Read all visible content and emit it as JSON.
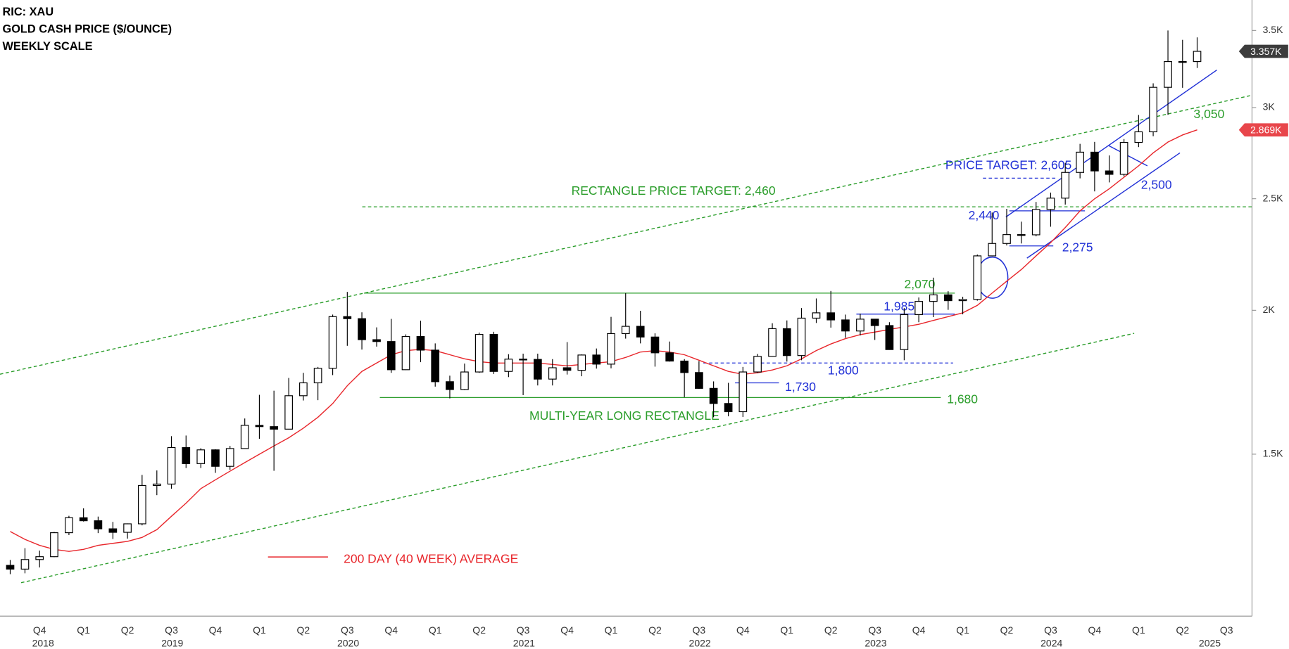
{
  "chart_data": {
    "type": "candlestick",
    "title_lines": [
      "RIC: XAU",
      "GOLD CASH PRICE ($/OUNCE)",
      "WEEKLY SCALE"
    ],
    "xlim": [
      2018.65,
      2025.77
    ],
    "ylim": [
      1085,
      3720
    ],
    "log_scale": true,
    "grid": false,
    "xticks": [
      {
        "value": 2018.875,
        "label": "Q4"
      },
      {
        "value": 2019.125,
        "label": "Q1"
      },
      {
        "value": 2019.375,
        "label": "Q2"
      },
      {
        "value": 2019.625,
        "label": "Q3"
      },
      {
        "value": 2019.875,
        "label": "Q4"
      },
      {
        "value": 2020.125,
        "label": "Q1"
      },
      {
        "value": 2020.375,
        "label": "Q2"
      },
      {
        "value": 2020.625,
        "label": "Q3"
      },
      {
        "value": 2020.875,
        "label": "Q4"
      },
      {
        "value": 2021.125,
        "label": "Q1"
      },
      {
        "value": 2021.375,
        "label": "Q2"
      },
      {
        "value": 2021.625,
        "label": "Q3"
      },
      {
        "value": 2021.875,
        "label": "Q4"
      },
      {
        "value": 2022.125,
        "label": "Q1"
      },
      {
        "value": 2022.375,
        "label": "Q2"
      },
      {
        "value": 2022.625,
        "label": "Q3"
      },
      {
        "value": 2022.875,
        "label": "Q4"
      },
      {
        "value": 2023.125,
        "label": "Q1"
      },
      {
        "value": 2023.375,
        "label": "Q2"
      },
      {
        "value": 2023.625,
        "label": "Q3"
      },
      {
        "value": 2023.875,
        "label": "Q4"
      },
      {
        "value": 2024.125,
        "label": "Q1"
      },
      {
        "value": 2024.375,
        "label": "Q2"
      },
      {
        "value": 2024.625,
        "label": "Q3"
      },
      {
        "value": 2024.875,
        "label": "Q4"
      },
      {
        "value": 2025.125,
        "label": "Q1"
      },
      {
        "value": 2025.375,
        "label": "Q2"
      },
      {
        "value": 2025.625,
        "label": "Q3"
      }
    ],
    "x_year_labels": [
      {
        "value": 2018.895,
        "label": "2018"
      },
      {
        "value": 2019.63,
        "label": "2019"
      },
      {
        "value": 2020.63,
        "label": "2020"
      },
      {
        "value": 2021.63,
        "label": "2021"
      },
      {
        "value": 2022.63,
        "label": "2022"
      },
      {
        "value": 2023.63,
        "label": "2023"
      },
      {
        "value": 2024.63,
        "label": "2024"
      },
      {
        "value": 2025.53,
        "label": "2025"
      }
    ],
    "yticks": [
      {
        "value": 1500,
        "label": "1.5K"
      },
      {
        "value": 2000,
        "label": "2K"
      },
      {
        "value": 2500,
        "label": "2.5K"
      },
      {
        "value": 3000,
        "label": "3K"
      },
      {
        "value": 3500,
        "label": "3.5K"
      }
    ],
    "x": [
      2018.708,
      2018.792,
      2018.875,
      2018.958,
      2019.042,
      2019.125,
      2019.208,
      2019.292,
      2019.375,
      2019.458,
      2019.542,
      2019.625,
      2019.708,
      2019.792,
      2019.875,
      2019.958,
      2020.042,
      2020.125,
      2020.208,
      2020.292,
      2020.375,
      2020.458,
      2020.542,
      2020.625,
      2020.708,
      2020.792,
      2020.875,
      2020.958,
      2021.042,
      2021.125,
      2021.208,
      2021.292,
      2021.375,
      2021.458,
      2021.542,
      2021.625,
      2021.708,
      2021.792,
      2021.875,
      2021.958,
      2022.042,
      2022.125,
      2022.208,
      2022.292,
      2022.375,
      2022.458,
      2022.542,
      2022.625,
      2022.708,
      2022.792,
      2022.875,
      2022.958,
      2023.042,
      2023.125,
      2023.208,
      2023.292,
      2023.375,
      2023.458,
      2023.542,
      2023.625,
      2023.708,
      2023.792,
      2023.875,
      2023.958,
      2024.042,
      2024.125,
      2024.208,
      2024.292,
      2024.375,
      2024.458,
      2024.542,
      2024.625,
      2024.708,
      2024.792,
      2024.875,
      2024.958,
      2025.042,
      2025.125,
      2025.208,
      2025.292,
      2025.375,
      2025.458
    ],
    "open": [
      1201,
      1192,
      1215,
      1222,
      1282,
      1321,
      1313,
      1292,
      1283,
      1305,
      1409,
      1413,
      1520,
      1472,
      1513,
      1464,
      1517,
      1589,
      1585,
      1577,
      1686,
      1730,
      1781,
      1975,
      1967,
      1886,
      1879,
      1776,
      1898,
      1847,
      1734,
      1707,
      1768,
      1906,
      1770,
      1814,
      1813,
      1743,
      1783,
      1774,
      1829,
      1796,
      1909,
      1937,
      1896,
      1837,
      1807,
      1766,
      1711,
      1660,
      1633,
      1768,
      1824,
      1928,
      1827,
      1969,
      1990,
      1962,
      1919,
      1965,
      1940,
      1849,
      1983,
      2036,
      2063,
      2039,
      2044,
      2230,
      2286,
      2327,
      2326,
      2447,
      2503,
      2635,
      2744,
      2643,
      2625,
      2798,
      2858,
      3124,
      3289,
      3289
    ],
    "high": [
      1214,
      1243,
      1237,
      1284,
      1326,
      1346,
      1324,
      1310,
      1306,
      1439,
      1452,
      1555,
      1557,
      1518,
      1515,
      1525,
      1611,
      1689,
      1703,
      1747,
      1765,
      1786,
      1983,
      2075,
      1992,
      1933,
      1966,
      1906,
      1959,
      1872,
      1755,
      1798,
      1913,
      1916,
      1832,
      1834,
      1834,
      1814,
      1877,
      1831,
      1853,
      1974,
      2070,
      1998,
      1910,
      1879,
      1814,
      1807,
      1735,
      1730,
      1786,
      1833,
      1949,
      1960,
      2009,
      2048,
      2079,
      1983,
      1987,
      1966,
      1953,
      2009,
      2052,
      2135,
      2078,
      2055,
      2236,
      2432,
      2450,
      2388,
      2484,
      2531,
      2686,
      2790,
      2801,
      2726,
      2817,
      2956,
      3149,
      3500,
      3435,
      3452
    ],
    "low": [
      1180,
      1182,
      1196,
      1221,
      1276,
      1311,
      1281,
      1266,
      1267,
      1301,
      1382,
      1400,
      1459,
      1459,
      1445,
      1454,
      1517,
      1547,
      1451,
      1576,
      1670,
      1671,
      1757,
      1863,
      1849,
      1860,
      1765,
      1775,
      1803,
      1717,
      1677,
      1705,
      1765,
      1761,
      1750,
      1688,
      1721,
      1721,
      1759,
      1753,
      1780,
      1781,
      1890,
      1872,
      1787,
      1805,
      1681,
      1709,
      1615,
      1618,
      1616,
      1765,
      1823,
      1805,
      1810,
      1950,
      1932,
      1893,
      1902,
      1885,
      1848,
      1810,
      1953,
      1973,
      2002,
      1984,
      2039,
      2228,
      2277,
      2286,
      2319,
      2364,
      2471,
      2604,
      2537,
      2583,
      2615,
      2772,
      2833,
      2957,
      3121,
      3247
    ],
    "close": [
      1192,
      1215,
      1222,
      1282,
      1321,
      1313,
      1292,
      1283,
      1305,
      1409,
      1413,
      1520,
      1472,
      1513,
      1464,
      1517,
      1589,
      1585,
      1577,
      1686,
      1730,
      1781,
      1975,
      1967,
      1886,
      1879,
      1776,
      1898,
      1847,
      1734,
      1707,
      1768,
      1906,
      1770,
      1814,
      1813,
      1743,
      1783,
      1774,
      1829,
      1796,
      1909,
      1937,
      1896,
      1837,
      1807,
      1766,
      1711,
      1660,
      1633,
      1768,
      1824,
      1928,
      1827,
      1969,
      1990,
      1962,
      1919,
      1965,
      1940,
      1849,
      1983,
      2036,
      2063,
      2039,
      2044,
      2230,
      2286,
      2327,
      2326,
      2447,
      2503,
      2635,
      2744,
      2643,
      2625,
      2798,
      2858,
      3124,
      3289,
      3289,
      3357
    ],
    "moving_average": {
      "name": "200 DAY (40 WEEK) AVERAGE",
      "color": "#e8262b",
      "values": [
        1285,
        1265,
        1250,
        1240,
        1235,
        1240,
        1250,
        1255,
        1260,
        1270,
        1290,
        1325,
        1360,
        1400,
        1425,
        1450,
        1475,
        1500,
        1525,
        1550,
        1580,
        1615,
        1660,
        1720,
        1770,
        1800,
        1830,
        1845,
        1850,
        1845,
        1830,
        1815,
        1805,
        1800,
        1800,
        1800,
        1800,
        1795,
        1790,
        1795,
        1800,
        1805,
        1820,
        1840,
        1845,
        1840,
        1830,
        1810,
        1790,
        1770,
        1760,
        1765,
        1775,
        1790,
        1815,
        1845,
        1870,
        1890,
        1905,
        1915,
        1925,
        1935,
        1945,
        1960,
        1975,
        1990,
        2020,
        2070,
        2120,
        2170,
        2230,
        2290,
        2360,
        2440,
        2500,
        2550,
        2610,
        2670,
        2740,
        2800,
        2840,
        2869
      ]
    },
    "price_tags": [
      {
        "value": 3357,
        "label": "3.357K",
        "color": "#3c3c3c"
      },
      {
        "value": 2869,
        "label": "2.869K",
        "color": "#e8464b"
      }
    ],
    "levels": [
      {
        "value": 2070,
        "label": "2,070",
        "x": [
          2020.72,
          2024.08
        ],
        "color": "#2a9d2a",
        "dashed": false
      },
      {
        "value": 1680,
        "label": "1,680",
        "x": [
          2020.81,
          2024.0
        ],
        "color": "#2a9d2a",
        "dashed": false
      },
      {
        "value": 2460,
        "label": "RECTANGLE PRICE TARGET: 2,460",
        "x": [
          2020.71,
          2025.77
        ],
        "color": "#2a9d2a",
        "dashed": true
      },
      {
        "value": 1985,
        "label": "1,985",
        "x": [
          2023.52,
          2024.08
        ],
        "color": "#1f2fd6",
        "dashed": false
      },
      {
        "value": 1800,
        "label": "1,800",
        "x": [
          2022.65,
          2024.07
        ],
        "color": "#1f2fd6",
        "dashed": true
      },
      {
        "value": 1730,
        "label": "1,730",
        "x": [
          2022.83,
          2023.08
        ],
        "color": "#1f2fd6",
        "dashed": false
      },
      {
        "value": 2440,
        "label": "2,440",
        "x": [
          2024.39,
          2024.82
        ],
        "color": "#1f2fd6",
        "dashed": false
      },
      {
        "value": 2275,
        "label": "2,275",
        "x": [
          2024.39,
          2024.64
        ],
        "color": "#1f2fd6",
        "dashed": false
      },
      {
        "value": 2605,
        "label": "PRICE TARGET: 2,605",
        "x": [
          2024.24,
          2024.66
        ],
        "color": "#1f2fd6",
        "dashed": true
      }
    ],
    "trendlines": [
      {
        "points": [
          [
            2018.65,
            1760
          ],
          [
            2025.77,
            3075
          ]
        ],
        "color": "#2a9d2a",
        "dashed": true
      },
      {
        "points": [
          [
            2018.77,
            1160
          ],
          [
            2025.1,
            1910
          ]
        ],
        "color": "#2a9d2a",
        "dashed": true
      },
      {
        "points": [
          [
            2024.37,
            2410
          ],
          [
            2025.57,
            3234
          ]
        ],
        "color": "#1f2fd6",
        "dashed": false
      },
      {
        "points": [
          [
            2024.49,
            2220
          ],
          [
            2025.36,
            2740
          ]
        ],
        "color": "#1f2fd6",
        "dashed": false
      },
      {
        "points": [
          [
            2024.955,
            2780
          ],
          [
            2025.175,
            2670
          ]
        ],
        "color": "#1f2fd6",
        "dashed": false
      }
    ],
    "annotations": [
      {
        "text": "2,500",
        "color": "#1f2fd6"
      },
      {
        "text": "3,050",
        "color": "#2a9d2a"
      },
      {
        "text": "MULTI-YEAR LONG RECTANGLE",
        "color": "#2a9d2a"
      }
    ]
  }
}
